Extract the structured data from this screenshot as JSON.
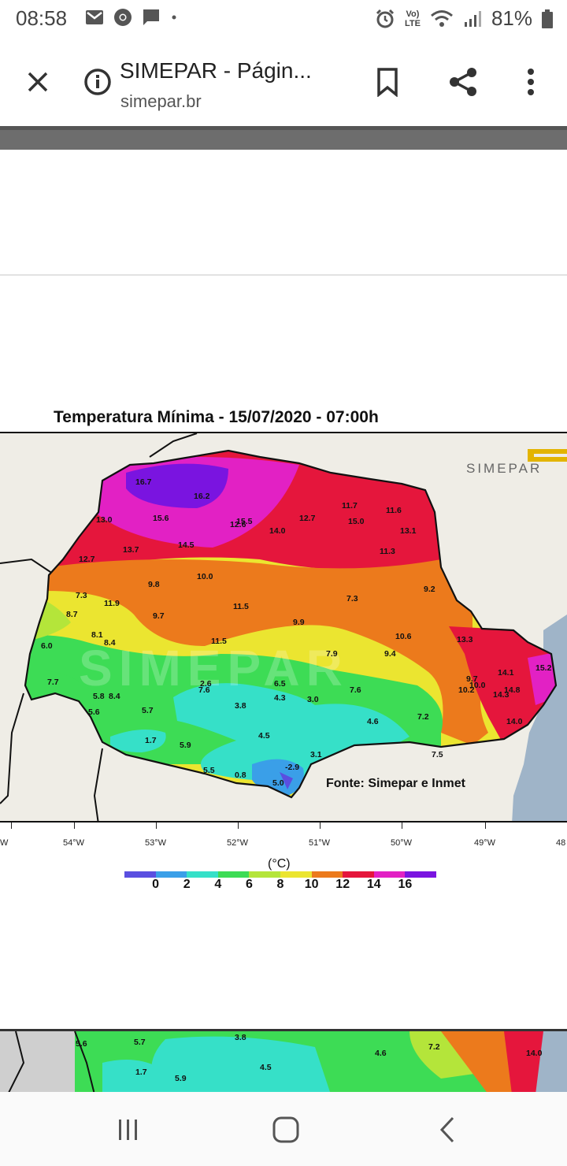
{
  "status": {
    "time": "08:58",
    "battery": "81%",
    "lte_label": "LTE"
  },
  "browser": {
    "title": "SIMEPAR - Págin...",
    "url": "simepar.br"
  },
  "map": {
    "title": "Temperatura Mínima - 15/07/2020 - 07:00h",
    "watermark": "SIMEPAR",
    "source": "Fonte: Simepar e Inmet",
    "unit": "(°C)",
    "colorbar_ticks": [
      "0",
      "2",
      "4",
      "6",
      "8",
      "10",
      "12",
      "14",
      "16"
    ],
    "colorbar_colors": [
      "#5a4fe0",
      "#3a9fe8",
      "#36e0c8",
      "#3ddc55",
      "#b4e53a",
      "#ebe530",
      "#ec7a1c",
      "#e5163c",
      "#e221c4",
      "#7a14e0"
    ],
    "longitudes": [
      "W",
      "54°W",
      "53°W",
      "52°W",
      "51°W",
      "50°W",
      "49°W",
      "48"
    ],
    "labels": [
      {
        "t": "16.7"
      },
      {
        "t": "16.2"
      },
      {
        "t": "15.6"
      },
      {
        "t": "12.6"
      },
      {
        "t": "15.5"
      },
      {
        "t": "14.5"
      },
      {
        "t": "14.0"
      },
      {
        "t": "12.7"
      },
      {
        "t": "11.7"
      },
      {
        "t": "15.0"
      },
      {
        "t": "11.6"
      },
      {
        "t": "13.1"
      },
      {
        "t": "13.0"
      },
      {
        "t": "13.7"
      },
      {
        "t": "12.7"
      },
      {
        "t": "11.3"
      },
      {
        "t": "10.0"
      },
      {
        "t": "9.8"
      },
      {
        "t": "7.3"
      },
      {
        "t": "11.9"
      },
      {
        "t": "8.7"
      },
      {
        "t": "9.7"
      },
      {
        "t": "11.5"
      },
      {
        "t": "9.9"
      },
      {
        "t": "7.3"
      },
      {
        "t": "9.2"
      },
      {
        "t": "8.1"
      },
      {
        "t": "8.4"
      },
      {
        "t": "6.0"
      },
      {
        "t": "11.5"
      },
      {
        "t": "7.9"
      },
      {
        "t": "9.4"
      },
      {
        "t": "10.6"
      },
      {
        "t": "13.3"
      },
      {
        "t": "7.7"
      },
      {
        "t": "2.6"
      },
      {
        "t": "7.6"
      },
      {
        "t": "6.5"
      },
      {
        "t": "4.3"
      },
      {
        "t": "3.0"
      },
      {
        "t": "7.6"
      },
      {
        "t": "5.8"
      },
      {
        "t": "8.4"
      },
      {
        "t": "5.6"
      },
      {
        "t": "5.7"
      },
      {
        "t": "3.8"
      },
      {
        "t": "4.6"
      },
      {
        "t": "7.2"
      },
      {
        "t": "9.7"
      },
      {
        "t": "10.0"
      },
      {
        "t": "10.2"
      },
      {
        "t": "14.1"
      },
      {
        "t": "14.8"
      },
      {
        "t": "14.3"
      },
      {
        "t": "15.2"
      },
      {
        "t": "14.0"
      },
      {
        "t": "1.7"
      },
      {
        "t": "5.9"
      },
      {
        "t": "4.5"
      },
      {
        "t": "3.1"
      },
      {
        "t": "5.5"
      },
      {
        "t": "0.8"
      },
      {
        "t": "-2.9"
      },
      {
        "t": "5.0"
      },
      {
        "t": "7.5"
      }
    ],
    "next_labels": [
      "5.6",
      "5.7",
      "3.8",
      "4.5",
      "1.7",
      "5.9",
      "4.6",
      "7.2",
      "14.0"
    ]
  },
  "icons": {
    "close": "close-icon",
    "info": "info-icon",
    "bookmark": "bookmark-icon",
    "share": "share-icon",
    "menu": "more-vert-icon",
    "recents": "recents-icon",
    "home": "home-icon",
    "back": "back-icon"
  }
}
